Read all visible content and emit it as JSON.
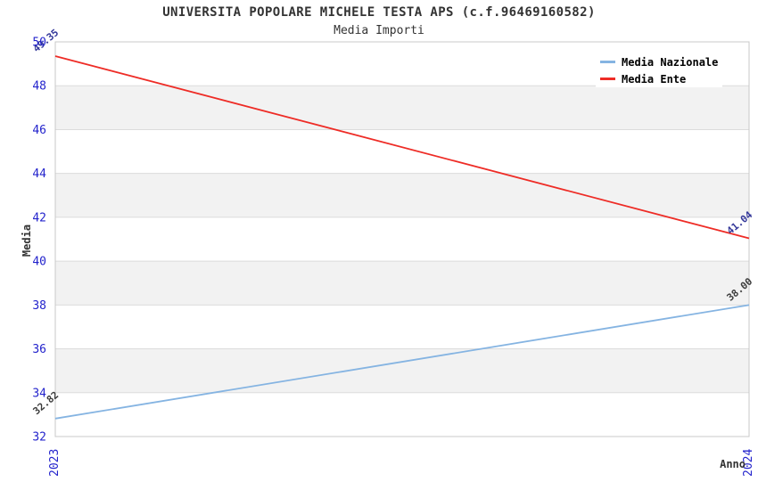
{
  "chart_data": {
    "type": "line",
    "title": "UNIVERSITA POPOLARE MICHELE TESTA APS (c.f.96469160582)",
    "subtitle": "Media Importi",
    "xlabel": "Anno",
    "ylabel": "Media",
    "categories": [
      "2023",
      "2024"
    ],
    "ylim": [
      32,
      50
    ],
    "ytick_step": 2,
    "yticks": [
      32,
      34,
      36,
      38,
      40,
      42,
      44,
      46,
      48,
      50
    ],
    "series": [
      {
        "name": "Media Nazionale",
        "values": [
          32.82,
          38.0
        ],
        "point_labels": [
          "32.82",
          "38.00"
        ],
        "color": "#85b4e2",
        "point_label_color": "#3c3c3c"
      },
      {
        "name": "Media Ente",
        "values": [
          49.35,
          41.04
        ],
        "point_labels": [
          "49.35",
          "41.04"
        ],
        "color": "#ee2c26",
        "point_label_color": "#35399a"
      }
    ],
    "legend_position": "top-right",
    "grid": true,
    "band_colors": [
      "#ffffff",
      "#f2f2f2"
    ],
    "grid_color": "#dcdcdc",
    "axis_color": "#c8c8c8",
    "tick_label_color": "#2323cc",
    "title_color": "#333333",
    "background": "#ffffff"
  }
}
